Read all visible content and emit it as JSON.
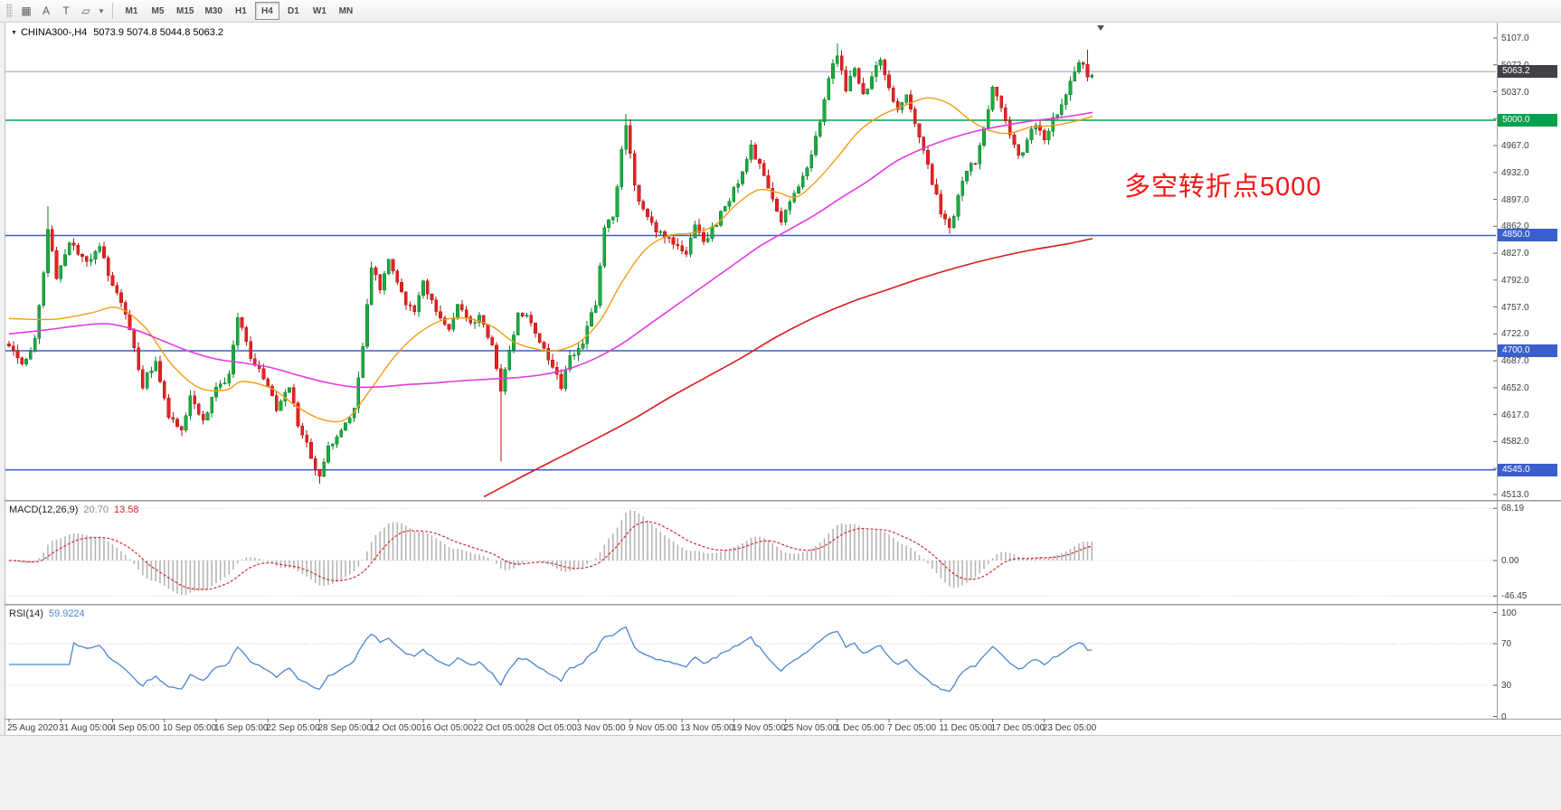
{
  "toolbar": {
    "tools": [
      {
        "button": "grid-tool-button",
        "icon": "grid-icon",
        "glyph": "▦"
      },
      {
        "button": "cursor-tool-button",
        "icon": "cursor-a-icon",
        "glyph": "A"
      },
      {
        "button": "text-tool-button",
        "icon": "text-tool-icon",
        "glyph": "T"
      },
      {
        "button": "shapes-tool-button",
        "icon": "shapes-tool-icon",
        "glyph": "▱"
      },
      {
        "button": "shapes-dropdown-button",
        "icon": "dropdown-caret-icon",
        "glyph": "▾"
      }
    ],
    "timeframes": [
      "M1",
      "M5",
      "M15",
      "M30",
      "H1",
      "H4",
      "D1",
      "W1",
      "MN"
    ],
    "selected_timeframe": "H4"
  },
  "chart": {
    "header_symbol": "CHINA300-,H4",
    "ohlc_text": "5073.9 5074.8 5044.8 5063.2",
    "annotation": {
      "text": "多空转折点5000",
      "color": "#fb1414"
    },
    "current_price": {
      "value": "5063.2",
      "badge_color": "#3f4146",
      "line_color": "#92a0b2"
    },
    "levels": [
      {
        "value": 5000.0,
        "label": "5000.0",
        "color": "#00a24d"
      },
      {
        "value": 4850.0,
        "label": "4850.0",
        "color": "#3a5fcd"
      },
      {
        "value": 4700.0,
        "label": "4700.0",
        "color": "#3a5fcd"
      },
      {
        "value": 4545.0,
        "label": "4545.0",
        "color": "#3a5fcd"
      }
    ],
    "price_axis": [
      "5107.0",
      "5072.0",
      "5037.0",
      "5002.0",
      "4967.0",
      "4932.0",
      "4897.0",
      "4862.0",
      "4827.0",
      "4792.0",
      "4757.0",
      "4722.0",
      "4687.0",
      "4652.0",
      "4617.0",
      "4582.0",
      "4547.0",
      "4513.0"
    ],
    "time_axis": [
      "25 Aug 2020",
      "31 Aug 05:00",
      "4 Sep 05:00",
      "10 Sep 05:00",
      "16 Sep 05:00",
      "22 Sep 05:00",
      "28 Sep 05:00",
      "12 Oct 05:00",
      "16 Oct 05:00",
      "22 Oct 05:00",
      "28 Oct 05:00",
      "3 Nov 05:00",
      "9 Nov 05:00",
      "13 Nov 05:00",
      "19 Nov 05:00",
      "25 Nov 05:00",
      "1 Dec 05:00",
      "7 Dec 05:00",
      "11 Dec 05:00",
      "17 Dec 05:00",
      "23 Dec 05:00"
    ]
  },
  "macd": {
    "name": "MACD(12,26,9)",
    "main_value": "20.70",
    "signal_value": "13.58",
    "axis": [
      "68.19",
      "0.00",
      "-46.45"
    ],
    "histogram_color": "#b5b5b5",
    "signal_color": "#d42a2a"
  },
  "rsi": {
    "name": "RSI(14)",
    "value": "59.9224",
    "axis": [
      "100",
      "70",
      "30",
      "0"
    ],
    "levels": [
      70,
      30
    ],
    "line_color": "#4a86cf"
  },
  "chart_data": {
    "type": "candlestick",
    "symbol": "CHINA300-",
    "timeframe": "H4",
    "ohlc_latest": {
      "open": 5073.9,
      "high": 5074.8,
      "low": 5044.8,
      "close": 5063.2
    },
    "price_axis_range": {
      "top": 5107.0,
      "bottom": 4513.0
    },
    "bars_count": 252,
    "bars_per_time_label": 12,
    "horizontal_levels": [
      5000.0,
      4850.0,
      4700.0,
      4545.0
    ],
    "price_anchors": [
      [
        0,
        4705
      ],
      [
        3,
        4680
      ],
      [
        6,
        4715
      ],
      [
        8,
        4800
      ],
      [
        9,
        4858
      ],
      [
        11,
        4795
      ],
      [
        14,
        4845
      ],
      [
        18,
        4815
      ],
      [
        21,
        4840
      ],
      [
        23,
        4795
      ],
      [
        26,
        4765
      ],
      [
        29,
        4705
      ],
      [
        31,
        4655
      ],
      [
        34,
        4690
      ],
      [
        37,
        4612
      ],
      [
        40,
        4598
      ],
      [
        42,
        4642
      ],
      [
        45,
        4605
      ],
      [
        48,
        4652
      ],
      [
        51,
        4665
      ],
      [
        53,
        4745
      ],
      [
        56,
        4695
      ],
      [
        59,
        4662
      ],
      [
        62,
        4625
      ],
      [
        65,
        4652
      ],
      [
        67,
        4605
      ],
      [
        70,
        4562
      ],
      [
        72,
        4535
      ],
      [
        74,
        4572
      ],
      [
        77,
        4592
      ],
      [
        80,
        4628
      ],
      [
        82,
        4705
      ],
      [
        84,
        4812
      ],
      [
        86,
        4782
      ],
      [
        88,
        4818
      ],
      [
        91,
        4772
      ],
      [
        94,
        4748
      ],
      [
        96,
        4788
      ],
      [
        99,
        4752
      ],
      [
        102,
        4732
      ],
      [
        104,
        4758
      ],
      [
        107,
        4738
      ],
      [
        109,
        4742
      ],
      [
        112,
        4705
      ],
      [
        114,
        4648
      ],
      [
        116,
        4702
      ],
      [
        118,
        4748
      ],
      [
        121,
        4738
      ],
      [
        124,
        4702
      ],
      [
        126,
        4682
      ],
      [
        128,
        4652
      ],
      [
        130,
        4692
      ],
      [
        133,
        4712
      ],
      [
        136,
        4762
      ],
      [
        138,
        4858
      ],
      [
        140,
        4878
      ],
      [
        142,
        4958
      ],
      [
        143,
        4998
      ],
      [
        145,
        4912
      ],
      [
        148,
        4872
      ],
      [
        151,
        4852
      ],
      [
        154,
        4838
      ],
      [
        157,
        4822
      ],
      [
        159,
        4862
      ],
      [
        161,
        4842
      ],
      [
        164,
        4868
      ],
      [
        167,
        4898
      ],
      [
        170,
        4932
      ],
      [
        172,
        4968
      ],
      [
        174,
        4940
      ],
      [
        176,
        4908
      ],
      [
        179,
        4872
      ],
      [
        182,
        4902
      ],
      [
        185,
        4935
      ],
      [
        188,
        4998
      ],
      [
        190,
        5058
      ],
      [
        192,
        5086
      ],
      [
        194,
        5040
      ],
      [
        196,
        5072
      ],
      [
        198,
        5030
      ],
      [
        200,
        5060
      ],
      [
        202,
        5078
      ],
      [
        204,
        5042
      ],
      [
        206,
        5012
      ],
      [
        208,
        5032
      ],
      [
        210,
        4995
      ],
      [
        212,
        4960
      ],
      [
        214,
        4920
      ],
      [
        216,
        4880
      ],
      [
        218,
        4856
      ],
      [
        220,
        4902
      ],
      [
        222,
        4935
      ],
      [
        224,
        4948
      ],
      [
        226,
        4985
      ],
      [
        228,
        5038
      ],
      [
        230,
        5018
      ],
      [
        232,
        4985
      ],
      [
        234,
        4952
      ],
      [
        236,
        4972
      ],
      [
        238,
        4995
      ],
      [
        240,
        4978
      ],
      [
        242,
        5002
      ],
      [
        244,
        5018
      ],
      [
        246,
        5052
      ],
      [
        248,
        5078
      ],
      [
        250,
        5058
      ],
      [
        251,
        5063
      ]
    ],
    "special_wicks": [
      {
        "bar": 9,
        "high": 4888
      },
      {
        "bar": 72,
        "low": 4527
      },
      {
        "bar": 114,
        "low": 4556
      },
      {
        "bar": 143,
        "high": 5008
      },
      {
        "bar": 192,
        "high": 5100
      },
      {
        "bar": 250,
        "high": 5092
      }
    ],
    "ma_lines": [
      {
        "name": "ma-fast",
        "color": "#f29b16",
        "width": 1.4,
        "points": [
          [
            10,
            4742
          ],
          [
            60,
            4741
          ],
          [
            100,
            4749
          ],
          [
            130,
            4756
          ],
          [
            160,
            4731
          ],
          [
            190,
            4682
          ],
          [
            220,
            4652
          ],
          [
            250,
            4649
          ],
          [
            268,
            4660
          ],
          [
            300,
            4651
          ],
          [
            330,
            4626
          ],
          [
            358,
            4610
          ],
          [
            384,
            4612
          ],
          [
            410,
            4650
          ],
          [
            436,
            4692
          ],
          [
            462,
            4722
          ],
          [
            490,
            4740
          ],
          [
            518,
            4742
          ],
          [
            545,
            4731
          ],
          [
            566,
            4713
          ],
          [
            590,
            4703
          ],
          [
            614,
            4700
          ],
          [
            640,
            4711
          ],
          [
            664,
            4740
          ],
          [
            688,
            4790
          ],
          [
            714,
            4832
          ],
          [
            740,
            4850
          ],
          [
            764,
            4853
          ],
          [
            790,
            4863
          ],
          [
            814,
            4890
          ],
          [
            838,
            4909
          ],
          [
            860,
            4906
          ],
          [
            880,
            4900
          ],
          [
            902,
            4920
          ],
          [
            926,
            4952
          ],
          [
            950,
            4986
          ],
          [
            974,
            5006
          ],
          [
            1000,
            5019
          ],
          [
            1026,
            5029
          ],
          [
            1050,
            5021
          ],
          [
            1074,
            4999
          ],
          [
            1096,
            4986
          ],
          [
            1116,
            4983
          ],
          [
            1140,
            4991
          ],
          [
            1164,
            4993
          ],
          [
            1190,
            4999
          ],
          [
            1208,
            5005
          ]
        ]
      },
      {
        "name": "ma-medium",
        "color": "#e23ae2",
        "width": 1.6,
        "points": [
          [
            10,
            4722
          ],
          [
            50,
            4727
          ],
          [
            90,
            4733
          ],
          [
            120,
            4735
          ],
          [
            150,
            4727
          ],
          [
            180,
            4713
          ],
          [
            210,
            4699
          ],
          [
            240,
            4689
          ],
          [
            270,
            4684
          ],
          [
            300,
            4678
          ],
          [
            330,
            4668
          ],
          [
            360,
            4659
          ],
          [
            390,
            4653
          ],
          [
            420,
            4653
          ],
          [
            450,
            4656
          ],
          [
            480,
            4658
          ],
          [
            510,
            4661
          ],
          [
            540,
            4663
          ],
          [
            570,
            4665
          ],
          [
            600,
            4669
          ],
          [
            630,
            4677
          ],
          [
            660,
            4691
          ],
          [
            690,
            4711
          ],
          [
            720,
            4736
          ],
          [
            750,
            4761
          ],
          [
            780,
            4786
          ],
          [
            810,
            4811
          ],
          [
            840,
            4836
          ],
          [
            870,
            4856
          ],
          [
            900,
            4876
          ],
          [
            930,
            4899
          ],
          [
            960,
            4921
          ],
          [
            990,
            4946
          ],
          [
            1020,
            4963
          ],
          [
            1050,
            4976
          ],
          [
            1080,
            4986
          ],
          [
            1110,
            4993
          ],
          [
            1140,
            4999
          ],
          [
            1170,
            5003
          ],
          [
            1208,
            5010
          ]
        ]
      },
      {
        "name": "ma-slow",
        "color": "#d61c1c",
        "width": 1.6,
        "points": [
          [
            535,
            4510
          ],
          [
            580,
            4538
          ],
          [
            620,
            4562
          ],
          [
            660,
            4586
          ],
          [
            700,
            4611
          ],
          [
            740,
            4639
          ],
          [
            780,
            4665
          ],
          [
            820,
            4691
          ],
          [
            860,
            4719
          ],
          [
            900,
            4743
          ],
          [
            940,
            4763
          ],
          [
            980,
            4779
          ],
          [
            1020,
            4795
          ],
          [
            1060,
            4809
          ],
          [
            1100,
            4821
          ],
          [
            1140,
            4831
          ],
          [
            1180,
            4839
          ],
          [
            1208,
            4846
          ]
        ]
      }
    ],
    "indicators": [
      {
        "name": "MACD",
        "params": [
          12,
          26,
          9
        ],
        "last_main": 20.7,
        "last_signal": 13.58,
        "range": [
          -46.45,
          68.19
        ]
      },
      {
        "name": "RSI",
        "params": [
          14
        ],
        "last_value": 59.9224,
        "range": [
          0,
          100
        ],
        "levels": [
          70,
          30
        ]
      }
    ]
  }
}
